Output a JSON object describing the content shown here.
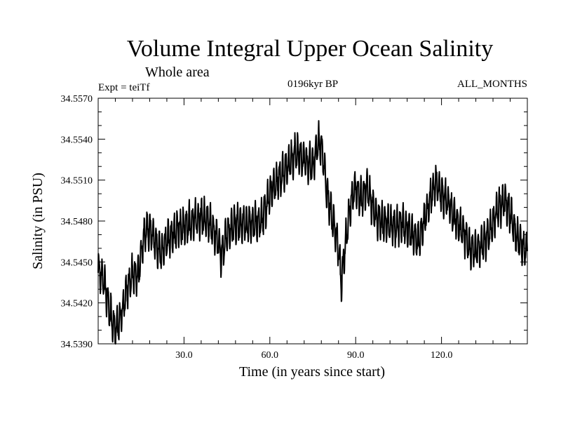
{
  "chart_data": {
    "type": "line",
    "title": "Volume Integral Upper Ocean Salinity",
    "subtitle": "Whole area",
    "experiment": "Expt = teiTf",
    "period": "0196kyr BP",
    "months": "ALL_MONTHS",
    "xlabel": "Time (in years since start)",
    "ylabel": "Salinity (in PSU)",
    "xlim": [
      0,
      150
    ],
    "ylim": [
      34.539,
      34.557
    ],
    "xticks": [
      30,
      60,
      90,
      120
    ],
    "xtick_labels": [
      "30.0",
      "60.0",
      "90.0",
      "120.0"
    ],
    "yticks": [
      34.539,
      34.542,
      34.545,
      34.548,
      34.551,
      34.554,
      34.557
    ],
    "ytick_labels": [
      "34.5390",
      "34.5420",
      "34.5450",
      "34.5480",
      "34.5510",
      "34.5540",
      "34.5570"
    ],
    "series": [
      {
        "name": "salinity",
        "x": [
          0,
          2,
          4,
          5,
          6,
          8,
          10,
          12,
          14,
          16,
          18,
          20,
          22,
          24,
          26,
          28,
          30,
          33,
          36,
          39,
          42,
          43,
          45,
          48,
          51,
          54,
          57,
          60,
          63,
          66,
          69,
          72,
          75,
          76,
          77,
          78,
          79,
          80,
          82,
          84,
          85,
          86,
          88,
          90,
          92,
          94,
          96,
          98,
          100,
          102,
          104,
          106,
          108,
          110,
          112,
          114,
          116,
          118,
          120,
          122,
          124,
          126,
          128,
          130,
          132,
          134,
          136,
          138,
          140,
          142,
          144,
          146,
          148,
          150
        ],
        "values": [
          34.5445,
          34.5435,
          34.5415,
          34.5405,
          34.54,
          34.541,
          34.543,
          34.544,
          34.544,
          34.547,
          34.5475,
          34.5465,
          34.5455,
          34.5465,
          34.547,
          34.5475,
          34.5475,
          34.548,
          34.5483,
          34.5478,
          34.5465,
          34.5455,
          34.547,
          34.5478,
          34.5478,
          34.5478,
          34.548,
          34.55,
          34.551,
          34.552,
          34.553,
          34.5525,
          34.552,
          34.553,
          34.5538,
          34.5535,
          34.552,
          34.55,
          34.548,
          34.546,
          34.5435,
          34.5455,
          34.549,
          34.5505,
          34.5495,
          34.5505,
          34.549,
          34.548,
          34.5478,
          34.5478,
          34.5475,
          34.5478,
          34.5475,
          34.547,
          34.5465,
          34.548,
          34.5495,
          34.551,
          34.55,
          34.5495,
          34.5485,
          34.5478,
          34.547,
          34.546,
          34.5458,
          34.5462,
          34.5468,
          34.5478,
          34.549,
          34.5495,
          34.5485,
          34.547,
          34.5462,
          34.5458
        ]
      }
    ]
  }
}
